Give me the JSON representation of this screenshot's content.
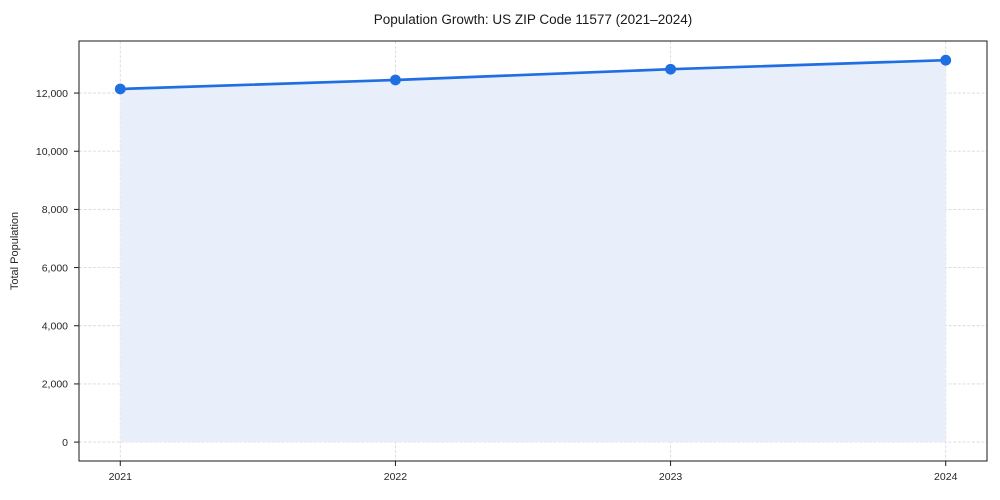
{
  "chart_data": {
    "type": "area",
    "title": "Population Growth: US ZIP Code 11577 (2021–2024)",
    "xlabel": "",
    "ylabel": "Total Population",
    "categories": [
      "2021",
      "2022",
      "2023",
      "2024"
    ],
    "x": [
      2021,
      2022,
      2023,
      2024
    ],
    "series": [
      {
        "name": "Total Population",
        "values": [
          12140,
          12450,
          12820,
          13130
        ]
      }
    ],
    "yticks": [
      0,
      2000,
      4000,
      6000,
      8000,
      10000,
      12000
    ],
    "ytick_labels": [
      "0",
      "2,000",
      "4,000",
      "6,000",
      "8,000",
      "10,000",
      "12,000"
    ],
    "xlim": [
      2020.85,
      2024.15
    ],
    "ylim": [
      -650,
      13790
    ],
    "grid": true,
    "legend_position": "none",
    "line_color": "#1f6fe3",
    "fill_color": "#e8effb",
    "marker": "circle",
    "baseline_value": 0
  }
}
